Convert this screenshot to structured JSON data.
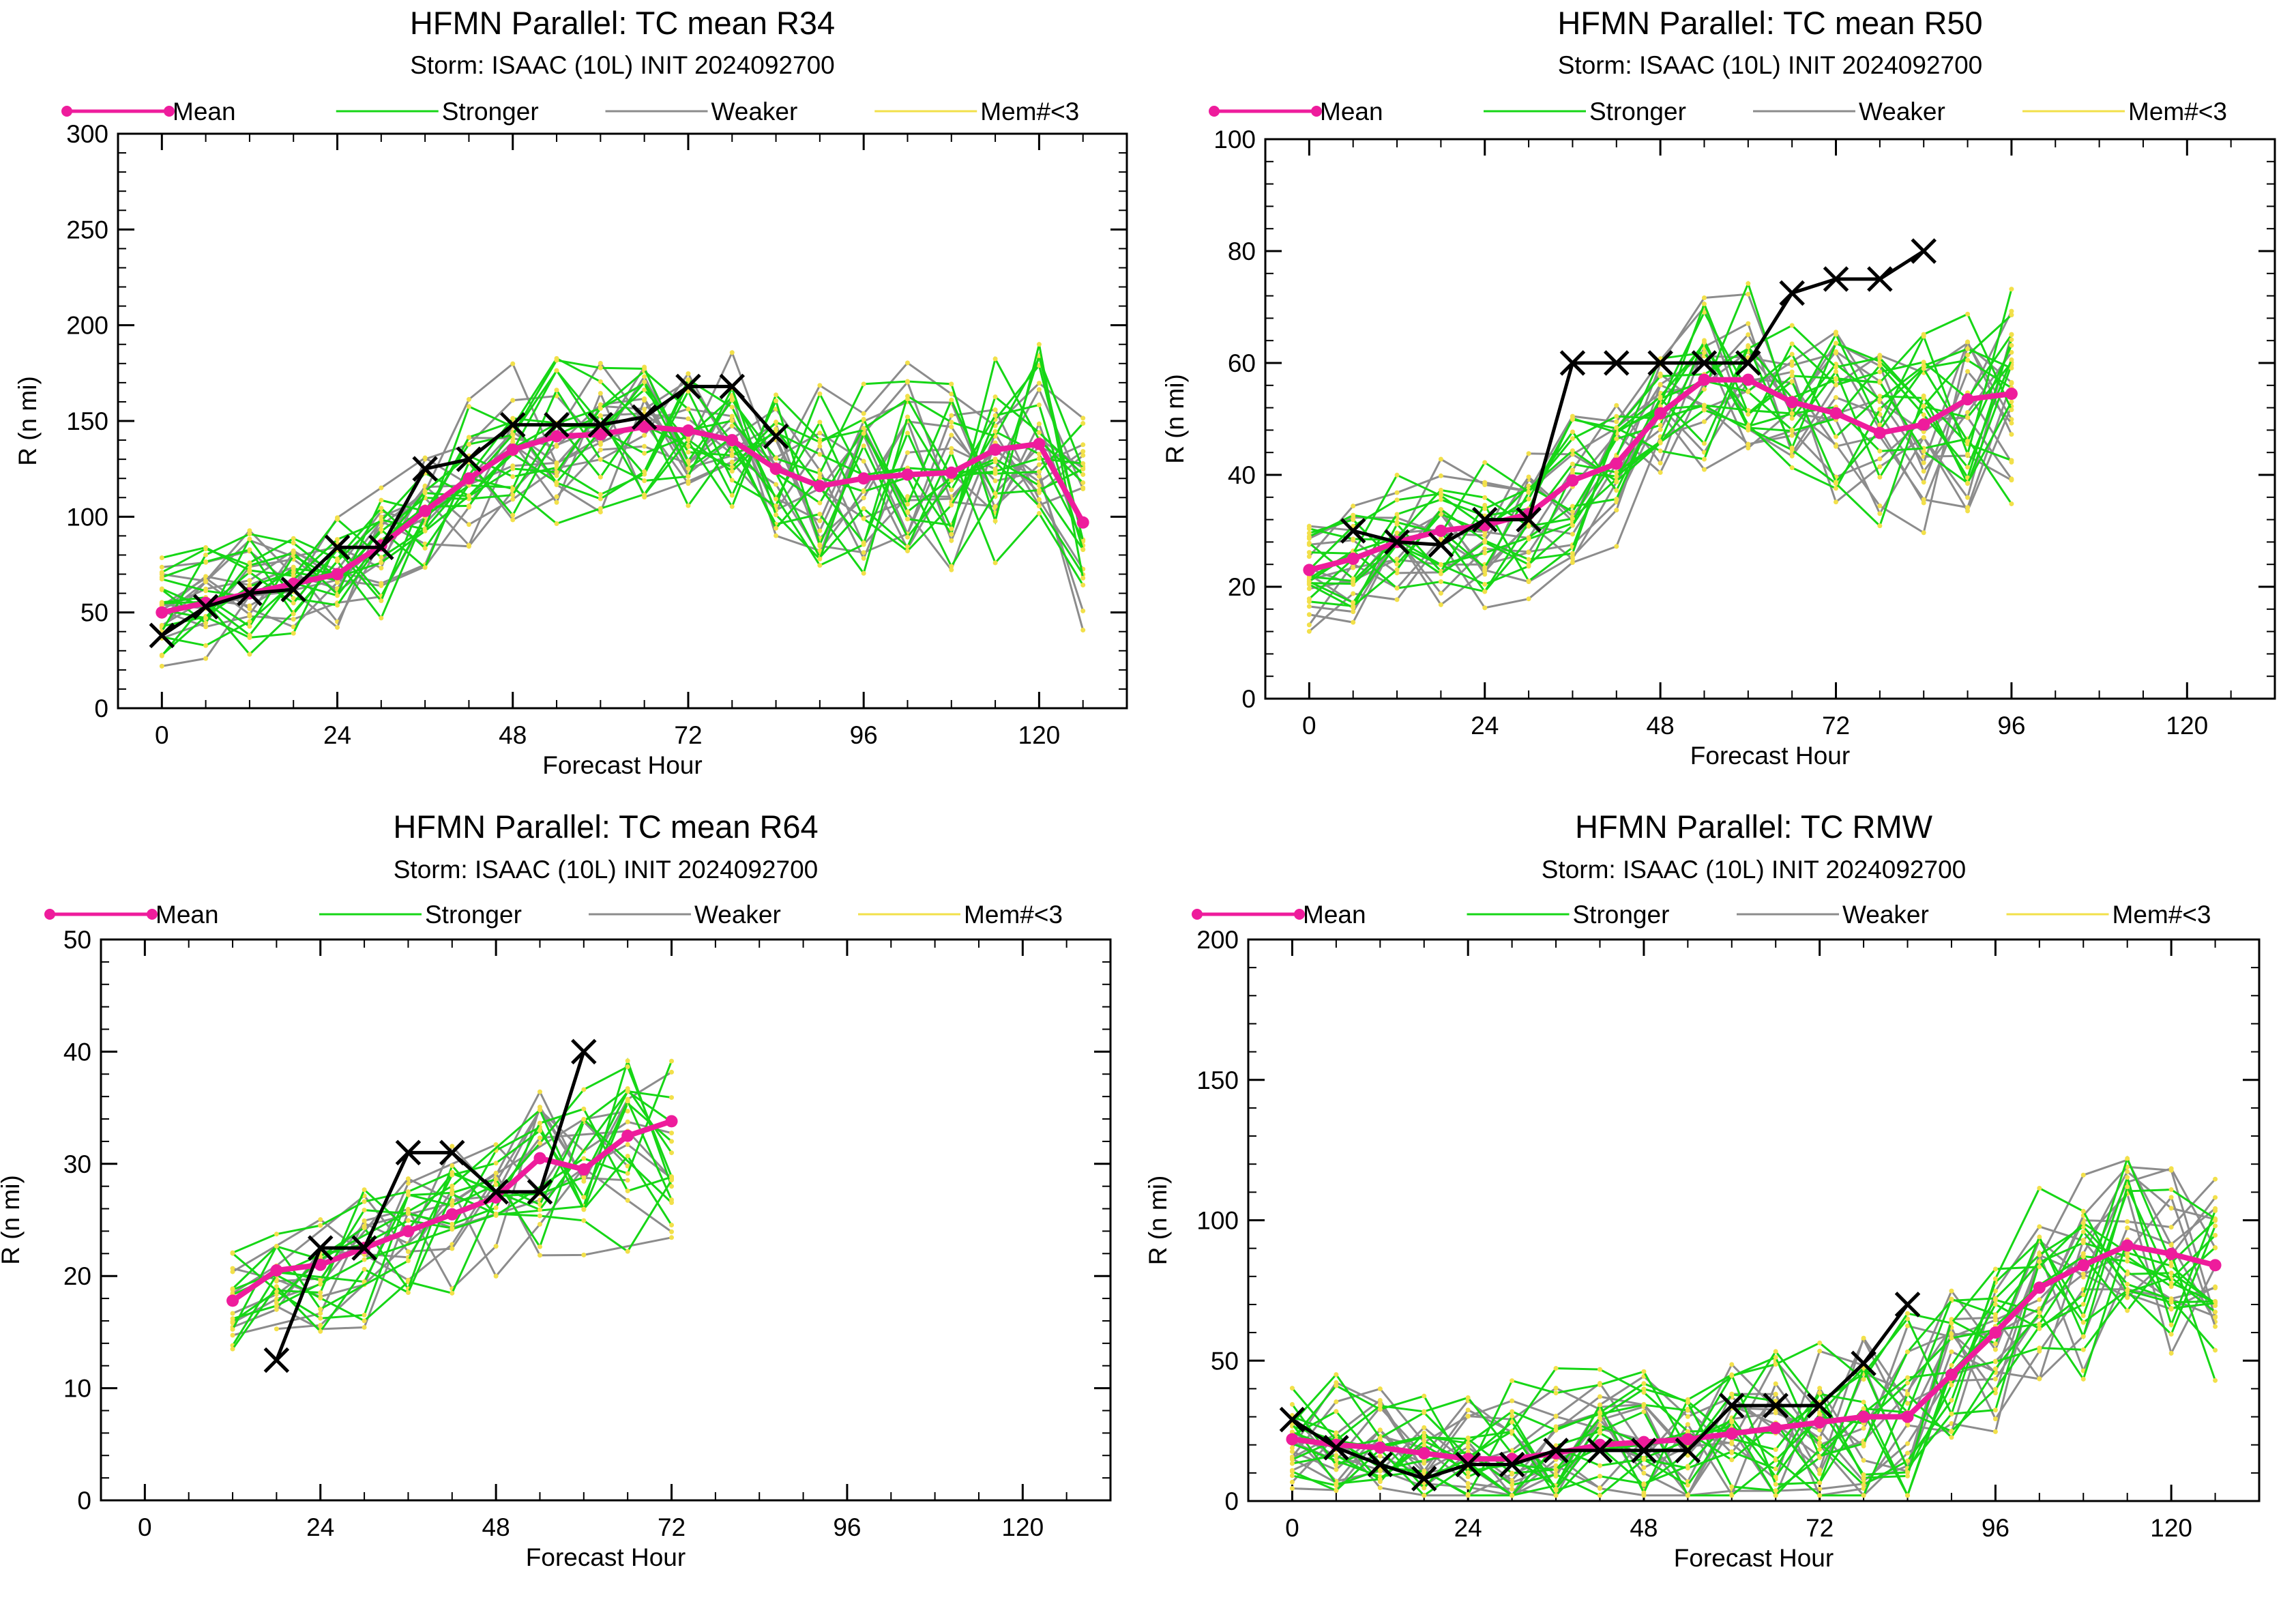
{
  "colors": {
    "mean": "#ee1c9c",
    "stronger": "#16d616",
    "weaker": "#8c8c8c",
    "memlt3": "#f2e04a",
    "obs": "#000000"
  },
  "chart_data": [
    {
      "type": "line",
      "title": "HFMN Parallel: TC mean R34",
      "subtitle": "Storm: ISAAC (10L) INIT 2024092700",
      "xlabel": "Forecast Hour",
      "ylabel": "R (n mi)",
      "xlim": [
        -6,
        132
      ],
      "ylim": [
        0,
        300
      ],
      "xticks": [
        "0",
        "24",
        "48",
        "72",
        "96",
        "120"
      ],
      "yticks": [
        "0",
        "50",
        "100",
        "150",
        "200",
        "250",
        "300"
      ],
      "legend": [
        "Mean",
        "Stronger",
        "Weaker",
        "Mem#<3"
      ],
      "legend_position": "top",
      "series": [
        {
          "name": "Mean",
          "x": [
            0,
            6,
            12,
            18,
            24,
            30,
            36,
            42,
            48,
            54,
            60,
            66,
            72,
            78,
            84,
            90,
            96,
            102,
            108,
            114,
            120,
            126
          ],
          "y": [
            50,
            55,
            60,
            65,
            70,
            85,
            103,
            120,
            135,
            142,
            143,
            147,
            145,
            140,
            125,
            116,
            120,
            122,
            123,
            135,
            138,
            97
          ]
        },
        {
          "name": "Observed",
          "x": [
            0,
            6,
            12,
            18,
            24,
            30,
            36,
            42,
            48,
            54,
            60,
            66,
            72,
            78,
            84
          ],
          "y": [
            38,
            53,
            60,
            62,
            84,
            84,
            125,
            130,
            148,
            148,
            148,
            152,
            168,
            168,
            142
          ]
        }
      ],
      "stronger_members": 14,
      "weaker_members": 12
    },
    {
      "type": "line",
      "title": "HFMN Parallel: TC mean R50",
      "subtitle": "Storm: ISAAC (10L) INIT 2024092700",
      "xlabel": "Forecast Hour",
      "ylabel": "R (n mi)",
      "xlim": [
        -6,
        132
      ],
      "ylim": [
        0,
        100
      ],
      "xticks": [
        "0",
        "24",
        "48",
        "72",
        "96",
        "120"
      ],
      "yticks": [
        "0",
        "20",
        "40",
        "60",
        "80",
        "100"
      ],
      "legend": [
        "Mean",
        "Stronger",
        "Weaker",
        "Mem#<3"
      ],
      "legend_position": "top",
      "series": [
        {
          "name": "Mean",
          "x": [
            0,
            6,
            12,
            18,
            24,
            30,
            36,
            42,
            48,
            54,
            60,
            66,
            72,
            78,
            84,
            90,
            96
          ],
          "y": [
            23,
            25,
            28,
            30,
            31,
            33,
            39,
            42,
            51,
            57,
            57,
            53,
            51,
            47.5,
            49,
            53.5,
            54.5
          ]
        },
        {
          "name": "Observed",
          "x": [
            6,
            12,
            18,
            24,
            30,
            36,
            42,
            48,
            54,
            60,
            66,
            72,
            78,
            84
          ],
          "y": [
            30,
            28,
            27.5,
            32,
            32,
            60,
            60,
            60,
            60,
            60,
            72.5,
            75,
            75,
            80
          ]
        }
      ],
      "stronger_members": 14,
      "weaker_members": 12
    },
    {
      "type": "line",
      "title": "HFMN Parallel: TC mean R64",
      "subtitle": "Storm: ISAAC (10L) INIT 2024092700",
      "xlabel": "Forecast Hour",
      "ylabel": "R (n mi)",
      "xlim": [
        -6,
        132
      ],
      "ylim": [
        0,
        50
      ],
      "xticks": [
        "0",
        "24",
        "48",
        "72",
        "96",
        "120"
      ],
      "yticks": [
        "0",
        "10",
        "20",
        "30",
        "40",
        "50"
      ],
      "legend": [
        "Mean",
        "Stronger",
        "Weaker",
        "Mem#<3"
      ],
      "legend_position": "top",
      "series": [
        {
          "name": "Mean",
          "x": [
            12,
            18,
            24,
            30,
            36,
            42,
            48,
            54,
            60,
            66,
            72
          ],
          "y": [
            17.8,
            20.5,
            21,
            22.5,
            24,
            25.5,
            27,
            30.5,
            29.5,
            32.5,
            33.8
          ]
        },
        {
          "name": "Observed",
          "x": [
            18,
            24,
            30,
            36,
            42,
            48,
            54,
            60
          ],
          "y": [
            12.5,
            22.5,
            22.5,
            31,
            31,
            27.5,
            27.5,
            40
          ]
        }
      ],
      "stronger_members": 12,
      "weaker_members": 10
    },
    {
      "type": "line",
      "title": "HFMN Parallel: TC RMW",
      "subtitle": "Storm: ISAAC (10L) INIT 2024092700",
      "xlabel": "Forecast Hour",
      "ylabel": "R (n mi)",
      "xlim": [
        -6,
        132
      ],
      "ylim": [
        0,
        200
      ],
      "xticks": [
        "0",
        "24",
        "48",
        "72",
        "96",
        "120"
      ],
      "yticks": [
        "0",
        "50",
        "100",
        "150",
        "200"
      ],
      "legend": [
        "Mean",
        "Stronger",
        "Weaker",
        "Mem#<3"
      ],
      "legend_position": "top",
      "series": [
        {
          "name": "Mean",
          "x": [
            0,
            6,
            12,
            18,
            24,
            30,
            36,
            42,
            48,
            54,
            60,
            66,
            72,
            78,
            84,
            90,
            96,
            102,
            108,
            114,
            120,
            126
          ],
          "y": [
            22,
            20,
            19,
            17,
            15,
            15,
            17,
            20,
            21,
            22,
            24,
            26,
            28,
            30,
            30,
            45,
            60,
            76,
            84,
            91,
            88,
            84
          ]
        },
        {
          "name": "Observed",
          "x": [
            0,
            6,
            12,
            18,
            24,
            30,
            36,
            42,
            48,
            54,
            60,
            66,
            72,
            78,
            84
          ],
          "y": [
            29,
            19,
            13,
            8,
            13,
            13,
            18,
            18,
            18,
            18,
            34,
            34,
            34,
            49,
            70
          ]
        }
      ],
      "stronger_members": 14,
      "weaker_members": 12
    }
  ]
}
